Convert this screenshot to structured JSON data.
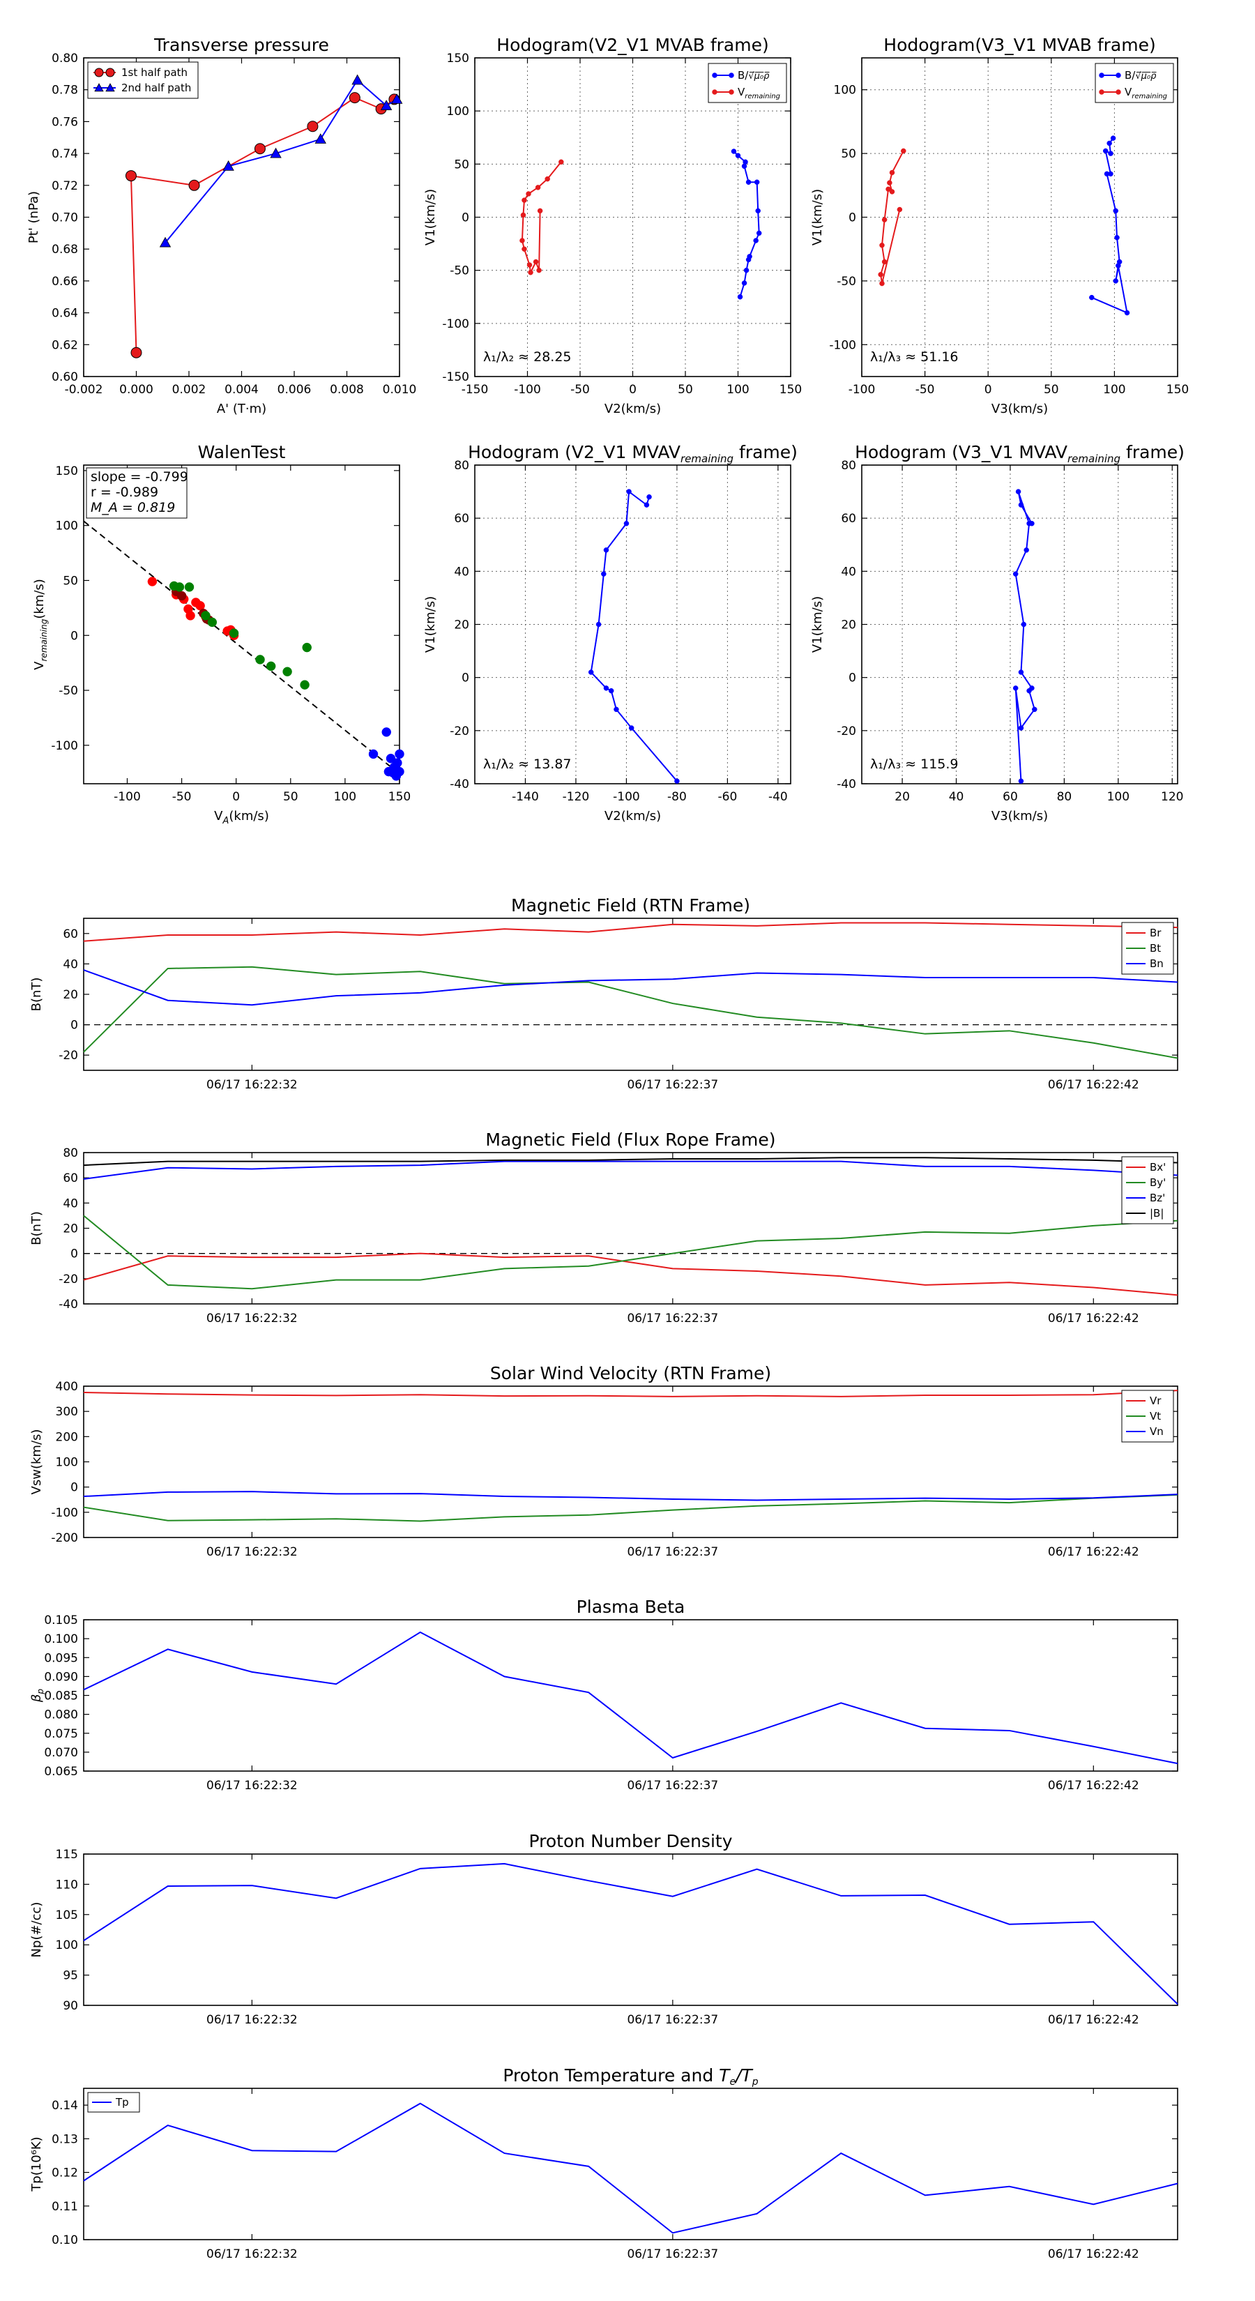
{
  "chart_data": [
    {
      "id": "transverse-pressure",
      "type": "scatter",
      "title": "Transverse pressure",
      "xlabel": "A' (T·m)",
      "ylabel": "Pt' (nPa)",
      "xlim": [
        -0.002,
        0.01
      ],
      "ylim": [
        0.6,
        0.8
      ],
      "xticks": [
        -0.002,
        0.0,
        0.002,
        0.004,
        0.006,
        0.008,
        0.01
      ],
      "xtick_labels": [
        "-0.002",
        "0.000",
        "0.002",
        "0.004",
        "0.006",
        "0.008",
        "0.010"
      ],
      "yticks": [
        0.6,
        0.62,
        0.64,
        0.66,
        0.68,
        0.7,
        0.72,
        0.74,
        0.76,
        0.78,
        0.8
      ],
      "ytick_labels": [
        "0.60",
        "0.62",
        "0.64",
        "0.66",
        "0.68",
        "0.70",
        "0.72",
        "0.74",
        "0.76",
        "0.78",
        "0.80"
      ],
      "grid": false,
      "legend": "top-left",
      "series": [
        {
          "name": "1st half path",
          "color": "#e41a1c",
          "marker": "circle",
          "x": [
            0.0,
            -0.0002,
            0.0022,
            0.0047,
            0.0067,
            0.0083,
            0.0093,
            0.0098
          ],
          "y": [
            0.615,
            0.726,
            0.72,
            0.743,
            0.757,
            0.775,
            0.768,
            0.774
          ]
        },
        {
          "name": "2nd half path",
          "color": "#0000ff",
          "marker": "triangle",
          "x": [
            0.0011,
            0.0035,
            0.0053,
            0.007,
            0.0084,
            0.0095,
            0.0099
          ],
          "y": [
            0.684,
            0.732,
            0.74,
            0.749,
            0.786,
            0.77,
            0.774
          ]
        }
      ]
    },
    {
      "id": "hodogram-v2-mvab",
      "type": "line",
      "title": "Hodogram(V2_V1 MVAB frame)",
      "xlabel": "V2(km/s)",
      "ylabel": "V1(km/s)",
      "xlim": [
        -150,
        150
      ],
      "ylim": [
        -150,
        150
      ],
      "xticks": [
        -150,
        -100,
        -50,
        0,
        50,
        100,
        150
      ],
      "yticks": [
        -150,
        -100,
        -50,
        0,
        50,
        100,
        150
      ],
      "grid": true,
      "legend": "top-right",
      "annotation": "λ₁/λ₂ ≈ 28.25",
      "series": [
        {
          "name": "B/√(μ₀ρ)",
          "color": "#0000ff",
          "x": [
            96,
            100,
            107,
            106,
            110,
            118,
            119,
            120,
            117,
            111,
            110,
            108,
            106,
            102
          ],
          "y": [
            62,
            58,
            52,
            48,
            33,
            33,
            6,
            -15,
            -22,
            -37,
            -40,
            -50,
            -62,
            -75
          ]
        },
        {
          "name": "V_remaining",
          "color": "#e41a1c",
          "x": [
            -68,
            -81,
            -90,
            -99,
            -103,
            -104,
            -105,
            -103,
            -98,
            -97,
            -92,
            -89,
            -88
          ],
          "y": [
            52,
            36,
            28,
            22,
            16,
            2,
            -22,
            -30,
            -45,
            -52,
            -42,
            -50,
            6
          ]
        }
      ]
    },
    {
      "id": "hodogram-v3-mvab",
      "type": "line",
      "title": "Hodogram(V3_V1 MVAB frame)",
      "xlabel": "V3(km/s)",
      "ylabel": "V1(km/s)",
      "xlim": [
        -100,
        150
      ],
      "ylim": [
        -125,
        125
      ],
      "xticks": [
        -100,
        -50,
        0,
        50,
        100,
        150
      ],
      "yticks": [
        -100,
        -50,
        0,
        50,
        100
      ],
      "grid": true,
      "legend": "top-right",
      "annotation": "λ₁/λ₃ ≈ 51.16",
      "series": [
        {
          "name": "B/√(μ₀ρ)",
          "color": "#0000ff",
          "x": [
            99,
            96,
            97,
            93,
            97,
            94,
            101,
            102,
            104,
            101,
            103,
            110,
            82
          ],
          "y": [
            62,
            58,
            50,
            52,
            34,
            34,
            5,
            -16,
            -35,
            -50,
            -38,
            -75,
            -63
          ]
        },
        {
          "name": "V_remaining",
          "color": "#e41a1c",
          "x": [
            -67,
            -76,
            -78,
            -76,
            -79,
            -82,
            -84,
            -82,
            -85,
            -84,
            -70
          ],
          "y": [
            52,
            35,
            27,
            20,
            22,
            -2,
            -22,
            -35,
            -45,
            -52,
            6
          ]
        }
      ]
    },
    {
      "id": "walen-test",
      "type": "scatter",
      "title": "WalenTest",
      "xlabel": "V_A(km/s)",
      "ylabel": "V_remaining(km/s)",
      "xlim": [
        -140,
        150
      ],
      "ylim": [
        -135,
        155
      ],
      "xticks": [
        -100,
        -50,
        0,
        50,
        100,
        150
      ],
      "yticks": [
        -100,
        -50,
        0,
        50,
        100,
        150
      ],
      "grid": false,
      "stats": [
        "slope = -0.799",
        "r = -0.989",
        "M_A = 0.819"
      ],
      "fit_line": {
        "x": [
          -140,
          150
        ],
        "y": [
          104,
          -126
        ]
      },
      "series": [
        {
          "name": "red",
          "color": "#ff0000",
          "x": [
            -77,
            -55,
            -48,
            -44,
            -42,
            -37,
            -33,
            -28,
            -8,
            -5,
            -2
          ],
          "y": [
            49,
            37,
            33,
            24,
            18,
            30,
            27,
            17,
            4,
            5,
            0
          ]
        },
        {
          "name": "darkred",
          "color": "#8b0000",
          "x": [
            -30,
            -27,
            -25,
            -55,
            -50
          ],
          "y": [
            20,
            15,
            14,
            40,
            36
          ]
        },
        {
          "name": "green",
          "color": "#008000",
          "x": [
            -57,
            -52,
            -43,
            -28,
            -22,
            -2,
            22,
            32,
            47,
            63,
            65
          ],
          "y": [
            45,
            44,
            44,
            18,
            12,
            2,
            -22,
            -28,
            -33,
            -45,
            -11
          ]
        },
        {
          "name": "blue",
          "color": "#0000ff",
          "x": [
            126,
            138,
            140,
            142,
            145,
            147,
            148,
            150,
            150,
            144
          ],
          "y": [
            -108,
            -88,
            -124,
            -112,
            -120,
            -128,
            -116,
            -124,
            -108,
            -125
          ]
        }
      ]
    },
    {
      "id": "hodogram-v2-mvav",
      "type": "line",
      "title": "Hodogram (V2_V1 MVAV_remaining frame)",
      "xlabel": "V2(km/s)",
      "ylabel": "V1(km/s)",
      "xlim": [
        -160,
        -35
      ],
      "ylim": [
        -40,
        80
      ],
      "xticks": [
        -140,
        -120,
        -100,
        -80,
        -60,
        -40
      ],
      "yticks": [
        -40,
        -20,
        0,
        20,
        40,
        60,
        80
      ],
      "grid": true,
      "annotation": "λ₁/λ₂ ≈ 13.87",
      "series": [
        {
          "name": "hodogram",
          "color": "#0000ff",
          "x": [
            -91,
            -92,
            -99,
            -100,
            -108,
            -109,
            -111,
            -114,
            -108,
            -106,
            -104,
            -98,
            -80
          ],
          "y": [
            68,
            65,
            70,
            58,
            48,
            39,
            20,
            2,
            -4,
            -5,
            -12,
            -19,
            -39
          ]
        }
      ]
    },
    {
      "id": "hodogram-v3-mvav",
      "type": "line",
      "title": "Hodogram (V3_V1 MVAV_remaining frame)",
      "xlabel": "V3(km/s)",
      "ylabel": "V1(km/s)",
      "xlim": [
        5,
        122
      ],
      "ylim": [
        -40,
        80
      ],
      "xticks": [
        20,
        40,
        60,
        80,
        100,
        120
      ],
      "yticks": [
        -40,
        -20,
        0,
        20,
        40,
        60,
        80
      ],
      "grid": true,
      "annotation": "λ₁/λ₃ ≈ 115.9",
      "series": [
        {
          "name": "hodogram",
          "color": "#0000ff",
          "x": [
            68,
            64,
            63,
            67,
            66,
            62,
            65,
            64,
            68,
            67,
            69,
            64,
            62,
            64
          ],
          "y": [
            58,
            65,
            70,
            58,
            48,
            39,
            20,
            2,
            -4,
            -5,
            -12,
            -19,
            -4,
            -39
          ]
        }
      ]
    },
    {
      "id": "mag-rtn",
      "type": "line",
      "title": "Magnetic Field (RTN Frame)",
      "ylabel": "B(nT)",
      "xlim": [
        0,
        13
      ],
      "ylim": [
        -30,
        70
      ],
      "yticks": [
        -20,
        0,
        20,
        40,
        60
      ],
      "xtick_positions": [
        2.0,
        7.0,
        12.0
      ],
      "xtick_labels": [
        "06/17 16:22:32",
        "06/17 16:22:37",
        "06/17 16:22:42"
      ],
      "zero_line": true,
      "legend": "top-right",
      "series": [
        {
          "name": "Br",
          "color": "#e41a1c",
          "values": [
            55,
            59,
            59,
            61,
            59,
            63,
            61,
            66,
            65,
            67,
            67,
            66,
            65,
            64
          ]
        },
        {
          "name": "Bt",
          "color": "#228b22",
          "values": [
            -18,
            37,
            38,
            33,
            35,
            27,
            28,
            14,
            5,
            1,
            -6,
            -4,
            -12,
            -22
          ]
        },
        {
          "name": "Bn",
          "color": "#0000ff",
          "values": [
            36,
            16,
            13,
            19,
            21,
            26,
            29,
            30,
            34,
            33,
            31,
            31,
            31,
            28
          ]
        }
      ]
    },
    {
      "id": "mag-fluxrope",
      "type": "line",
      "title": "Magnetic Field (Flux Rope Frame)",
      "ylabel": "B(nT)",
      "xlim": [
        0,
        13
      ],
      "ylim": [
        -40,
        80
      ],
      "yticks": [
        -40,
        -20,
        0,
        20,
        40,
        60,
        80
      ],
      "xtick_positions": [
        2.0,
        7.0,
        12.0
      ],
      "xtick_labels": [
        "06/17 16:22:32",
        "06/17 16:22:37",
        "06/17 16:22:42"
      ],
      "zero_line": true,
      "legend": "top-right",
      "series": [
        {
          "name": "Bx'",
          "color": "#e41a1c",
          "values": [
            -21,
            -2,
            -3,
            -3,
            0,
            -3,
            -2,
            -12,
            -14,
            -18,
            -25,
            -23,
            -27,
            -33
          ]
        },
        {
          "name": "By'",
          "color": "#228b22",
          "values": [
            30,
            -25,
            -28,
            -21,
            -21,
            -12,
            -10,
            0,
            10,
            12,
            17,
            16,
            22,
            26
          ]
        },
        {
          "name": "Bz'",
          "color": "#0000ff",
          "values": [
            59,
            68,
            67,
            69,
            70,
            73,
            73,
            73,
            73,
            73,
            69,
            69,
            66,
            62
          ]
        },
        {
          "name": "|B|",
          "color": "#000000",
          "values": [
            70,
            73,
            73,
            73,
            73,
            74,
            74,
            75,
            75,
            76,
            76,
            75,
            74,
            72
          ]
        }
      ]
    },
    {
      "id": "sw-velocity",
      "type": "line",
      "title": "Solar Wind Velocity (RTN Frame)",
      "ylabel": "Vsw(km/s)",
      "xlim": [
        0,
        13
      ],
      "ylim": [
        -200,
        400
      ],
      "yticks": [
        -200,
        -100,
        0,
        100,
        200,
        300,
        400
      ],
      "xtick_positions": [
        2.0,
        7.0,
        12.0
      ],
      "xtick_labels": [
        "06/17 16:22:32",
        "06/17 16:22:37",
        "06/17 16:22:42"
      ],
      "legend": "top-right",
      "series": [
        {
          "name": "Vr",
          "color": "#e41a1c",
          "values": [
            375,
            369,
            365,
            363,
            366,
            361,
            362,
            359,
            362,
            359,
            364,
            364,
            366,
            383
          ]
        },
        {
          "name": "Vt",
          "color": "#228b22",
          "values": [
            -80,
            -133,
            -130,
            -126,
            -135,
            -118,
            -111,
            -91,
            -75,
            -66,
            -55,
            -62,
            -44,
            -31
          ]
        },
        {
          "name": "Vn",
          "color": "#0000ff",
          "values": [
            -37,
            -20,
            -18,
            -27,
            -26,
            -37,
            -41,
            -48,
            -52,
            -48,
            -44,
            -48,
            -43,
            -29
          ]
        }
      ]
    },
    {
      "id": "plasma-beta",
      "type": "line",
      "title": "Plasma Beta",
      "ylabel": "β_p",
      "xlim": [
        0,
        13
      ],
      "ylim": [
        0.065,
        0.105
      ],
      "yticks": [
        0.065,
        0.07,
        0.075,
        0.08,
        0.085,
        0.09,
        0.095,
        0.1,
        0.105
      ],
      "ytick_labels": [
        "0.065",
        "0.070",
        "0.075",
        "0.080",
        "0.085",
        "0.090",
        "0.095",
        "0.100",
        "0.105"
      ],
      "xtick_positions": [
        2.0,
        7.0,
        12.0
      ],
      "xtick_labels": [
        "06/17 16:22:32",
        "06/17 16:22:37",
        "06/17 16:22:42"
      ],
      "series": [
        {
          "name": "beta",
          "color": "#0000ff",
          "values": [
            0.0865,
            0.0972,
            0.0912,
            0.088,
            0.1017,
            0.09,
            0.0858,
            0.0685,
            0.0755,
            0.083,
            0.0763,
            0.0757,
            0.0715,
            0.067
          ]
        }
      ]
    },
    {
      "id": "proton-density",
      "type": "line",
      "title": "Proton Number Density",
      "ylabel": "Np(#/cc)",
      "xlim": [
        0,
        13
      ],
      "ylim": [
        90,
        115
      ],
      "yticks": [
        90,
        95,
        100,
        105,
        110,
        115
      ],
      "xtick_positions": [
        2.0,
        7.0,
        12.0
      ],
      "xtick_labels": [
        "06/17 16:22:32",
        "06/17 16:22:37",
        "06/17 16:22:42"
      ],
      "series": [
        {
          "name": "Np",
          "color": "#0000ff",
          "values": [
            100.7,
            109.7,
            109.8,
            107.7,
            112.6,
            113.4,
            110.6,
            108.0,
            112.5,
            108.1,
            108.2,
            103.4,
            103.8,
            90.2
          ]
        }
      ]
    },
    {
      "id": "proton-temperature",
      "type": "line",
      "title": "Proton Temperature and T_e/T_p",
      "ylabel": "Tp(10⁶K)",
      "xlim": [
        0,
        13
      ],
      "ylim": [
        0.1,
        0.145
      ],
      "yticks": [
        0.1,
        0.11,
        0.12,
        0.13,
        0.14
      ],
      "ytick_labels": [
        "0.10",
        "0.11",
        "0.12",
        "0.13",
        "0.14"
      ],
      "xtick_positions": [
        2.0,
        7.0,
        12.0
      ],
      "xtick_labels": [
        "06/17 16:22:32",
        "06/17 16:22:37",
        "06/17 16:22:42"
      ],
      "legend": "top-left",
      "series": [
        {
          "name": "Tp",
          "color": "#0000ff",
          "values": [
            0.1175,
            0.134,
            0.1265,
            0.1262,
            0.1405,
            0.1257,
            0.1218,
            0.102,
            0.1077,
            0.1257,
            0.1132,
            0.1158,
            0.1105,
            0.1167
          ]
        }
      ]
    }
  ]
}
